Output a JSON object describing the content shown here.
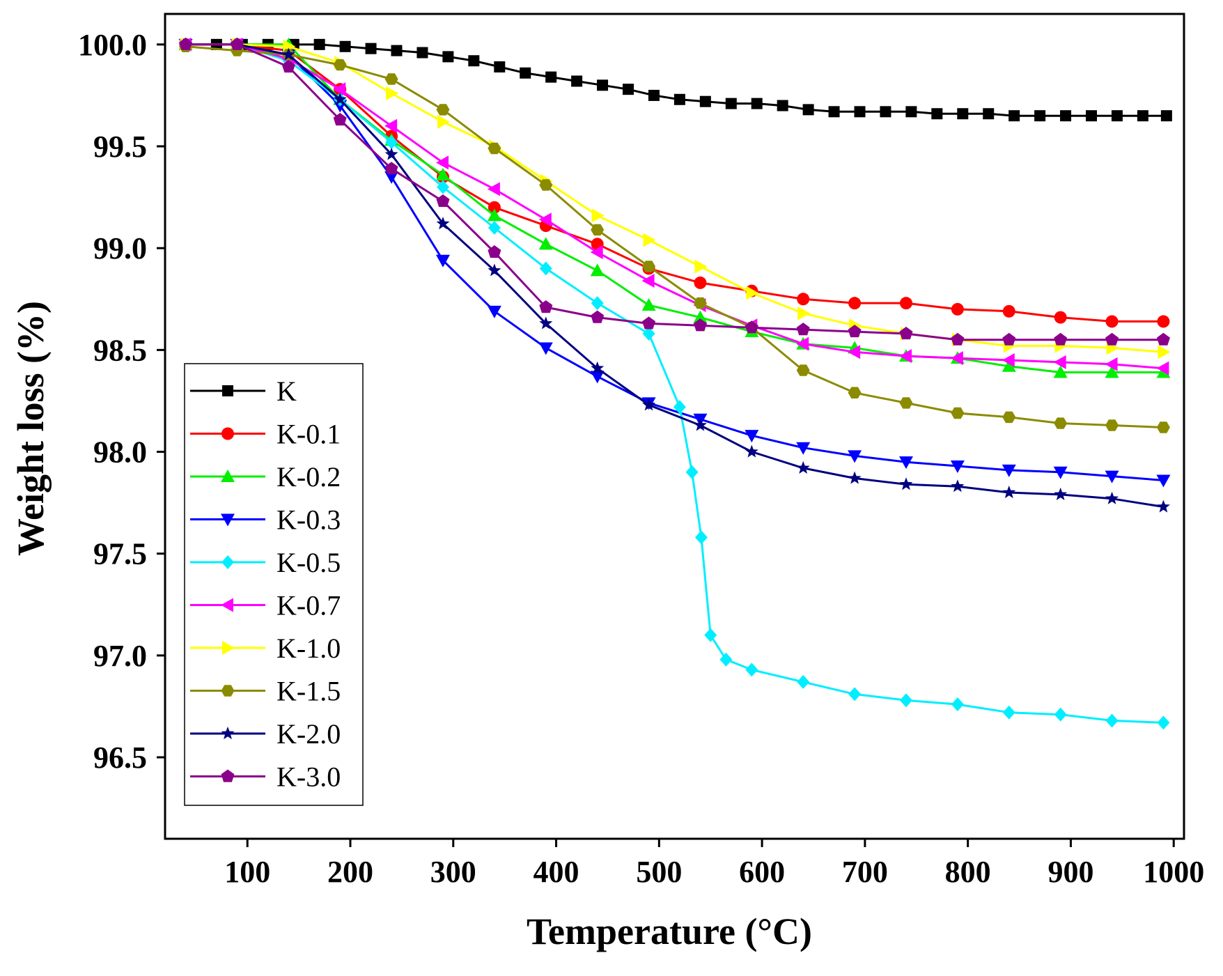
{
  "chart_data": {
    "type": "line",
    "title": "",
    "xlabel": "Temperature (°C)",
    "ylabel": "Weight loss (%)",
    "xlim": [
      20,
      1010
    ],
    "ylim": [
      96.1,
      100.15
    ],
    "xticks": [
      100,
      200,
      300,
      400,
      500,
      600,
      700,
      800,
      900,
      1000
    ],
    "yticks": [
      96.5,
      97.0,
      97.5,
      98.0,
      98.5,
      99.0,
      99.5,
      100.0
    ],
    "ytick_labels": [
      "96.5",
      "97.0",
      "97.5",
      "98.0",
      "98.5",
      "99.0",
      "99.5",
      "100.0"
    ],
    "legend_position": "bottom-left",
    "series": [
      {
        "name": "K",
        "color": "#000000",
        "marker": "square",
        "x": [
          40,
          70,
          95,
          120,
          145,
          170,
          195,
          220,
          245,
          270,
          295,
          320,
          345,
          370,
          395,
          420,
          445,
          470,
          495,
          520,
          545,
          570,
          595,
          620,
          645,
          670,
          695,
          720,
          745,
          770,
          795,
          820,
          845,
          870,
          895,
          920,
          945,
          970,
          993
        ],
        "y": [
          100.0,
          100.0,
          100.0,
          100.0,
          100.0,
          100.0,
          99.99,
          99.98,
          99.97,
          99.96,
          99.94,
          99.92,
          99.89,
          99.86,
          99.84,
          99.82,
          99.8,
          99.78,
          99.75,
          99.73,
          99.72,
          99.71,
          99.71,
          99.7,
          99.68,
          99.67,
          99.67,
          99.67,
          99.67,
          99.66,
          99.66,
          99.66,
          99.65,
          99.65,
          99.65,
          99.65,
          99.65,
          99.65,
          99.65
        ]
      },
      {
        "name": "K-0.1",
        "color": "#ff0000",
        "marker": "circle",
        "x": [
          40,
          90,
          140,
          190,
          240,
          290,
          340,
          390,
          440,
          490,
          540,
          590,
          640,
          690,
          740,
          790,
          840,
          890,
          940,
          990
        ],
        "y": [
          100.0,
          100.0,
          99.97,
          99.78,
          99.55,
          99.35,
          99.2,
          99.11,
          99.02,
          98.9,
          98.83,
          98.79,
          98.75,
          98.73,
          98.73,
          98.7,
          98.69,
          98.66,
          98.64,
          98.64
        ]
      },
      {
        "name": "K-0.2",
        "color": "#00ee00",
        "marker": "triangle-up",
        "x": [
          40,
          90,
          140,
          190,
          240,
          290,
          340,
          390,
          440,
          490,
          540,
          590,
          640,
          690,
          740,
          790,
          840,
          890,
          940,
          990
        ],
        "y": [
          100.0,
          100.0,
          100.0,
          99.73,
          99.53,
          99.36,
          99.16,
          99.02,
          98.89,
          98.72,
          98.66,
          98.59,
          98.53,
          98.51,
          98.47,
          98.46,
          98.42,
          98.39,
          98.39,
          98.39
        ]
      },
      {
        "name": "K-0.3",
        "color": "#0000ff",
        "marker": "triangle-down",
        "x": [
          40,
          90,
          140,
          190,
          240,
          290,
          340,
          390,
          440,
          490,
          540,
          590,
          640,
          690,
          740,
          790,
          840,
          890,
          940,
          990
        ],
        "y": [
          100.0,
          100.0,
          99.95,
          99.7,
          99.35,
          98.94,
          98.69,
          98.51,
          98.37,
          98.24,
          98.16,
          98.08,
          98.02,
          97.98,
          97.95,
          97.93,
          97.91,
          97.9,
          97.88,
          97.86
        ]
      },
      {
        "name": "K-0.5",
        "color": "#00eeff",
        "marker": "diamond",
        "x": [
          40,
          90,
          140,
          190,
          240,
          290,
          340,
          390,
          440,
          490,
          520,
          532,
          541,
          550,
          565,
          590,
          640,
          690,
          740,
          790,
          840,
          890,
          940,
          990
        ],
        "y": [
          100.0,
          100.0,
          99.92,
          99.73,
          99.52,
          99.3,
          99.1,
          98.9,
          98.73,
          98.58,
          98.22,
          97.9,
          97.58,
          97.1,
          96.98,
          96.93,
          96.87,
          96.81,
          96.78,
          96.76,
          96.72,
          96.71,
          96.68,
          96.67
        ]
      },
      {
        "name": "K-0.7",
        "color": "#ff00ff",
        "marker": "triangle-left",
        "x": [
          40,
          90,
          140,
          190,
          240,
          290,
          340,
          390,
          440,
          490,
          540,
          590,
          640,
          690,
          740,
          790,
          840,
          890,
          940,
          990
        ],
        "y": [
          100.0,
          100.0,
          99.93,
          99.78,
          99.6,
          99.42,
          99.29,
          99.14,
          98.98,
          98.84,
          98.72,
          98.62,
          98.53,
          98.49,
          98.47,
          98.46,
          98.45,
          98.44,
          98.43,
          98.41
        ]
      },
      {
        "name": "K-1.0",
        "color": "#ffff00",
        "marker": "triangle-right",
        "x": [
          40,
          90,
          140,
          190,
          240,
          290,
          340,
          390,
          440,
          490,
          540,
          590,
          640,
          690,
          740,
          790,
          840,
          890,
          940,
          990
        ],
        "y": [
          100.0,
          100.0,
          99.99,
          99.91,
          99.76,
          99.62,
          99.5,
          99.33,
          99.16,
          99.04,
          98.91,
          98.78,
          98.68,
          98.62,
          98.58,
          98.55,
          98.52,
          98.52,
          98.51,
          98.49
        ]
      },
      {
        "name": "K-1.5",
        "color": "#8b8b00",
        "marker": "hexagon",
        "x": [
          40,
          90,
          140,
          190,
          240,
          290,
          340,
          390,
          440,
          490,
          540,
          590,
          640,
          690,
          740,
          790,
          840,
          890,
          940,
          990
        ],
        "y": [
          99.99,
          99.97,
          99.95,
          99.9,
          99.83,
          99.68,
          99.49,
          99.31,
          99.09,
          98.91,
          98.73,
          98.61,
          98.4,
          98.29,
          98.24,
          98.19,
          98.17,
          98.14,
          98.13,
          98.12
        ]
      },
      {
        "name": "K-2.0",
        "color": "#000080",
        "marker": "star",
        "x": [
          40,
          90,
          140,
          190,
          240,
          290,
          340,
          390,
          440,
          490,
          540,
          590,
          640,
          690,
          740,
          790,
          840,
          890,
          940,
          990
        ],
        "y": [
          100.0,
          100.0,
          99.95,
          99.73,
          99.46,
          99.12,
          98.89,
          98.63,
          98.41,
          98.23,
          98.13,
          98.0,
          97.92,
          97.87,
          97.84,
          97.83,
          97.8,
          97.79,
          97.77,
          97.73
        ]
      },
      {
        "name": "K-3.0",
        "color": "#8b008b",
        "marker": "pentagon",
        "x": [
          40,
          90,
          140,
          190,
          240,
          290,
          340,
          390,
          440,
          490,
          540,
          590,
          640,
          690,
          740,
          790,
          840,
          890,
          940,
          990
        ],
        "y": [
          100.0,
          100.0,
          99.89,
          99.63,
          99.39,
          99.23,
          98.98,
          98.71,
          98.66,
          98.63,
          98.62,
          98.61,
          98.6,
          98.59,
          98.58,
          98.55,
          98.55,
          98.55,
          98.55,
          98.55
        ]
      }
    ]
  }
}
